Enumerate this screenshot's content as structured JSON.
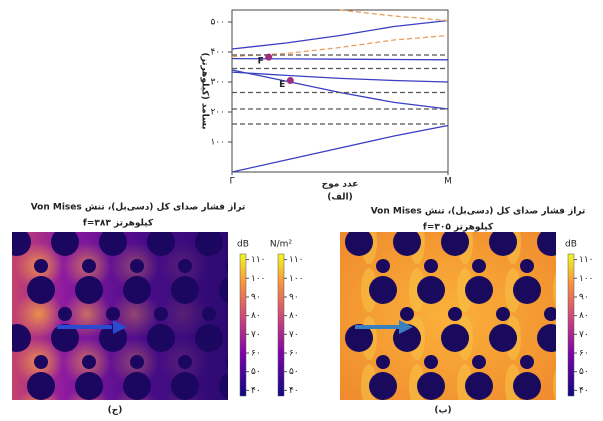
{
  "chart_data": [
    {
      "type": "line",
      "ylabel": "بسامد (کیلوهرتز)",
      "xlabel": "عدد موج",
      "caption": "(الف)",
      "x": [
        0,
        0.25,
        0.5,
        0.75,
        1
      ],
      "xlim": [
        0,
        1
      ],
      "xticks": [
        {
          "value": 0,
          "label": "Γ"
        },
        {
          "value": 1,
          "label": "M"
        }
      ],
      "ylim": [
        0,
        540
      ],
      "yticks": [
        {
          "value": 100,
          "label": "۱۰۰"
        },
        {
          "value": 200,
          "label": "۲۰۰"
        },
        {
          "value": 300,
          "label": "۳۰۰"
        },
        {
          "value": 400,
          "label": "۴۰۰"
        },
        {
          "value": 500,
          "label": "۵۰۰"
        }
      ],
      "series": [
        {
          "color": "#3b3fc2",
          "dashed": false,
          "values": [
            0,
            40,
            80,
            120,
            155
          ]
        },
        {
          "color": "#3b3fc2",
          "dashed": false,
          "values": [
            340,
            303,
            265,
            232,
            210
          ]
        },
        {
          "color": "#3b3fc2",
          "dashed": false,
          "values": [
            333,
            322,
            312,
            305,
            300
          ]
        },
        {
          "color": "#3b3fc2",
          "dashed": false,
          "values": [
            410,
            430,
            455,
            485,
            505
          ]
        },
        {
          "color": "#3b3fc2",
          "dashed": false,
          "values": [
            378,
            377,
            376,
            375,
            374
          ]
        },
        {
          "color": "#e8a060",
          "dashed": true,
          "values": [
            null,
            null,
            540,
            520,
            505
          ]
        },
        {
          "color": "#e8a060",
          "dashed": true,
          "values": [
            385,
            395,
            415,
            440,
            455
          ]
        },
        {
          "color": "#555555",
          "dashed": true,
          "values": [
            390,
            390,
            390,
            390,
            390
          ]
        },
        {
          "color": "#555555",
          "dashed": true,
          "values": [
            345,
            345,
            345,
            345,
            345
          ]
        },
        {
          "color": "#555555",
          "dashed": true,
          "values": [
            265,
            265,
            265,
            265,
            265
          ]
        },
        {
          "color": "#555555",
          "dashed": true,
          "values": [
            210,
            210,
            210,
            210,
            210
          ]
        },
        {
          "color": "#555555",
          "dashed": true,
          "values": [
            160,
            160,
            160,
            160,
            160
          ]
        }
      ],
      "points": [
        {
          "label": "F",
          "x": 0.17,
          "y": 383,
          "color": "#9b2f7e"
        },
        {
          "label": "E",
          "x": 0.27,
          "y": 305,
          "color": "#9b2f7e"
        }
      ]
    },
    {
      "type": "field",
      "theme": "dark",
      "title": "تراز فشار صدای کل (دسی‌بل)، تنش Von Mises",
      "subtitle": "کیلوهرتز ۳۸۳=f",
      "caption": "(ج)",
      "colorbars": [
        {
          "unit": "dB",
          "lim": [
            37,
            113
          ],
          "ticks": [
            {
              "value": 110,
              "label": "۱۱۰"
            },
            {
              "value": 100,
              "label": "۱۰۰"
            },
            {
              "value": 90,
              "label": "۹۰"
            },
            {
              "value": 80,
              "label": "۸۰"
            },
            {
              "value": 70,
              "label": "۷۰"
            },
            {
              "value": 60,
              "label": "۶۰"
            },
            {
              "value": 50,
              "label": "۵۰"
            },
            {
              "value": 40,
              "label": "۴۰"
            }
          ]
        },
        {
          "unit": "N/m²",
          "lim": [
            37,
            113
          ],
          "ticks": [
            {
              "value": 110,
              "label": "۱۱۰"
            },
            {
              "value": 100,
              "label": "۱۰۰"
            },
            {
              "value": 90,
              "label": "۹۰"
            },
            {
              "value": 80,
              "label": "۸۰"
            },
            {
              "value": 70,
              "label": "۷۰"
            },
            {
              "value": 60,
              "label": "۶۰"
            },
            {
              "value": 50,
              "label": "۵۰"
            },
            {
              "value": 40,
              "label": "۴۰"
            }
          ]
        }
      ]
    },
    {
      "type": "field",
      "theme": "bright",
      "title": "تراز فشار صدای کل (دسی‌بل)، تنش Von Mises",
      "subtitle": "کیلوهرتز ۳۰۵=f",
      "caption": "(ب)",
      "colorbars": [
        {
          "unit": "dB",
          "lim": [
            37,
            113
          ],
          "ticks": [
            {
              "value": 110,
              "label": "۱۱۰"
            },
            {
              "value": 100,
              "label": "۱۰۰"
            },
            {
              "value": 90,
              "label": "۹۰"
            },
            {
              "value": 80,
              "label": "۸۰"
            },
            {
              "value": 70,
              "label": "۷۰"
            },
            {
              "value": 60,
              "label": "۶۰"
            },
            {
              "value": 50,
              "label": "۵۰"
            },
            {
              "value": 40,
              "label": "۴۰"
            }
          ]
        }
      ]
    }
  ]
}
